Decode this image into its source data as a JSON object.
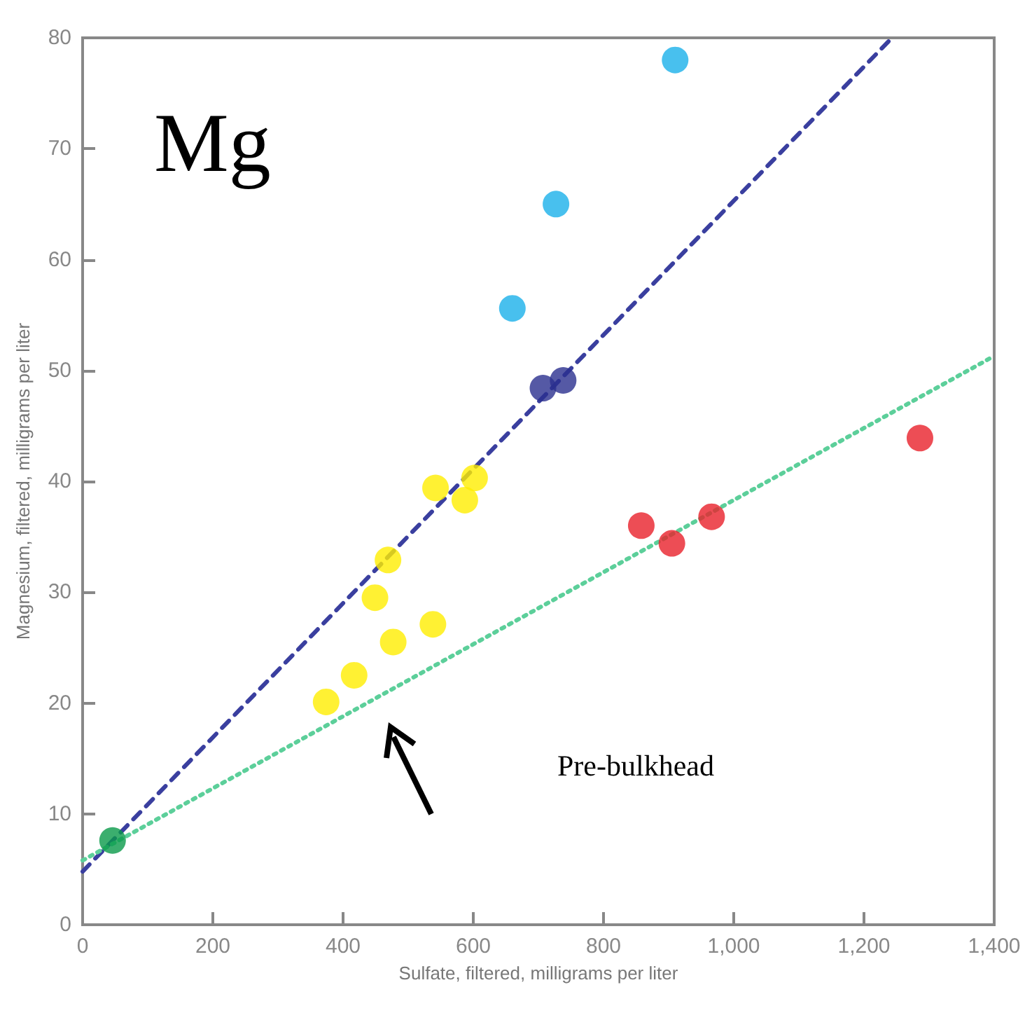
{
  "chart_data": {
    "type": "scatter",
    "xlabel": "Sulfate, filtered, milligrams per liter",
    "ylabel": "Magnesium, filtered, milligrams per liter",
    "xlim": [
      0,
      1400
    ],
    "ylim": [
      0,
      80
    ],
    "xticks": [
      0,
      200,
      400,
      600,
      800,
      {
        "value": 1000,
        "label": "1,000"
      },
      {
        "value": 1200,
        "label": "1,200"
      },
      {
        "value": 1400,
        "label": "1,400"
      }
    ],
    "yticks": [
      0,
      10,
      20,
      30,
      40,
      50,
      60,
      70,
      80
    ],
    "grid": false,
    "marker": "circle",
    "annotations": [
      "Mg",
      "Pre-bulkhead"
    ],
    "series": [
      {
        "type": "line",
        "color": "#3a3f9f",
        "line_style": "dashed",
        "marker": "none",
        "x": [
          0,
          1243
        ],
        "values": [
          4.8,
          80
        ]
      },
      {
        "type": "line",
        "color": "#5ccf9a",
        "line_style": "dotted",
        "marker": "none",
        "x": [
          0,
          1400
        ],
        "values": [
          5.8,
          51.3
        ]
      },
      {
        "color": "#0a9a4a",
        "x": [
          46
        ],
        "values": [
          7.6
        ]
      },
      {
        "color": "#ffee00",
        "x": [
          374,
          417,
          477,
          538,
          449,
          469,
          602,
          587,
          542
        ],
        "values": [
          20.1,
          22.5,
          25.5,
          27.1,
          29.5,
          32.9,
          40.3,
          38.3,
          39.4
        ]
      },
      {
        "color": "#2b2f8f",
        "x": [
          707,
          738
        ],
        "values": [
          48.4,
          49.1
        ]
      },
      {
        "color": "#1ab0ea",
        "x": [
          660,
          727,
          910
        ],
        "values": [
          55.6,
          65,
          78
        ]
      },
      {
        "color": "#e8202a",
        "x": [
          858,
          905,
          966,
          1286
        ],
        "values": [
          36,
          34.4,
          36.8,
          43.9
        ]
      }
    ]
  }
}
